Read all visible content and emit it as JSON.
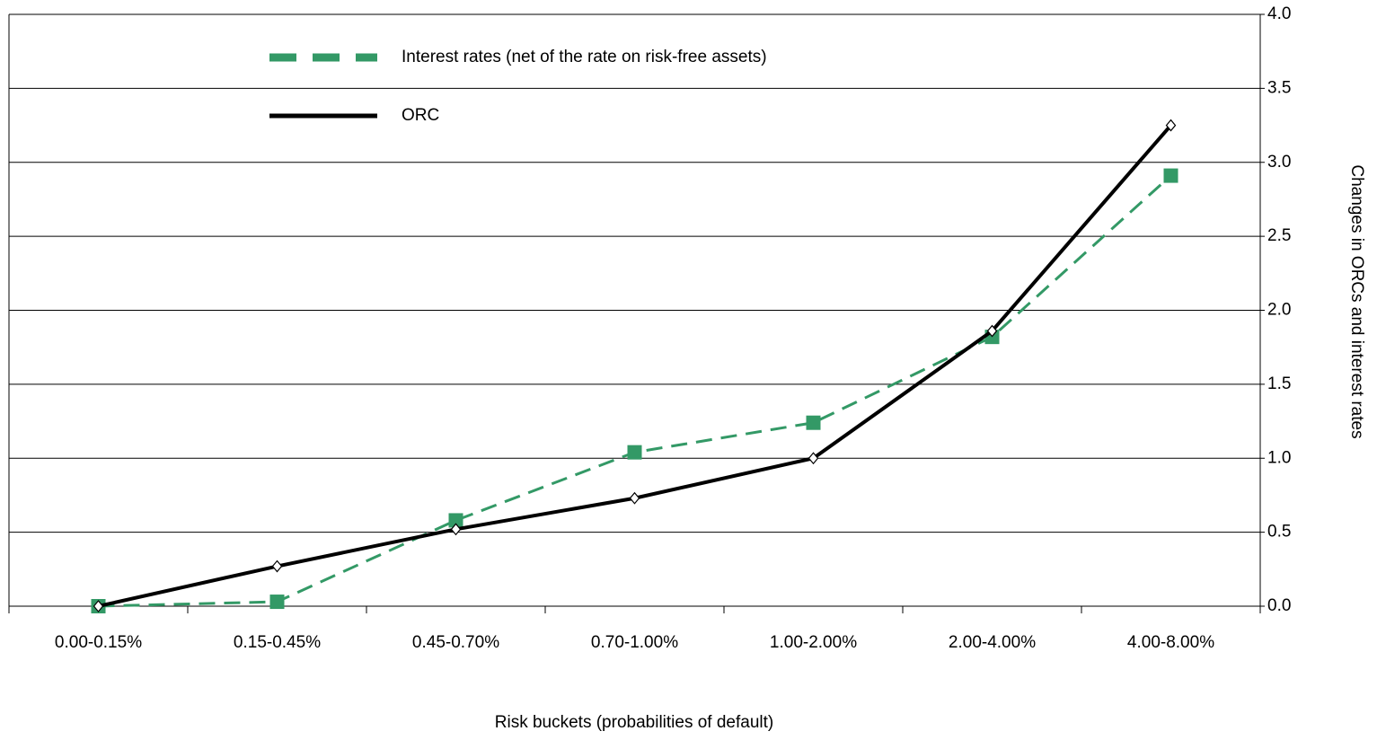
{
  "chart_data": {
    "type": "line",
    "x_label": "Risk buckets (probabilities of default)",
    "y_label": "Changes in ORCs and interest rates",
    "categories": [
      "0.00-0.15%",
      "0.15-0.45%",
      "0.45-0.70%",
      "0.70-1.00%",
      "1.00-2.00%",
      "2.00-4.00%",
      "4.00-8.00%"
    ],
    "series": [
      {
        "name": "Interest rates (net of the rate on risk-free assets)",
        "color": "#339966",
        "values": [
          0,
          0.03,
          0.58,
          1.04,
          1.24,
          1.82,
          2.91
        ]
      },
      {
        "name": "ORC",
        "color": "#000000",
        "values": [
          0,
          0.27,
          0.52,
          0.73,
          1.0,
          1.86,
          3.25
        ]
      }
    ],
    "ylim": [
      0,
      4
    ],
    "yticks": [
      {
        "value": 0,
        "label": "0.0"
      },
      {
        "value": 0.5,
        "label": "0.5"
      },
      {
        "value": 1,
        "label": "1.0"
      },
      {
        "value": 1.5,
        "label": "1.5"
      },
      {
        "value": 2,
        "label": "2.0"
      },
      {
        "value": 2.5,
        "label": "2.5"
      },
      {
        "value": 3,
        "label": "3.0"
      },
      {
        "value": 3.5,
        "label": "3.5"
      },
      {
        "value": 4,
        "label": "4.0"
      }
    ],
    "grid": true,
    "legend": "upper-left"
  }
}
